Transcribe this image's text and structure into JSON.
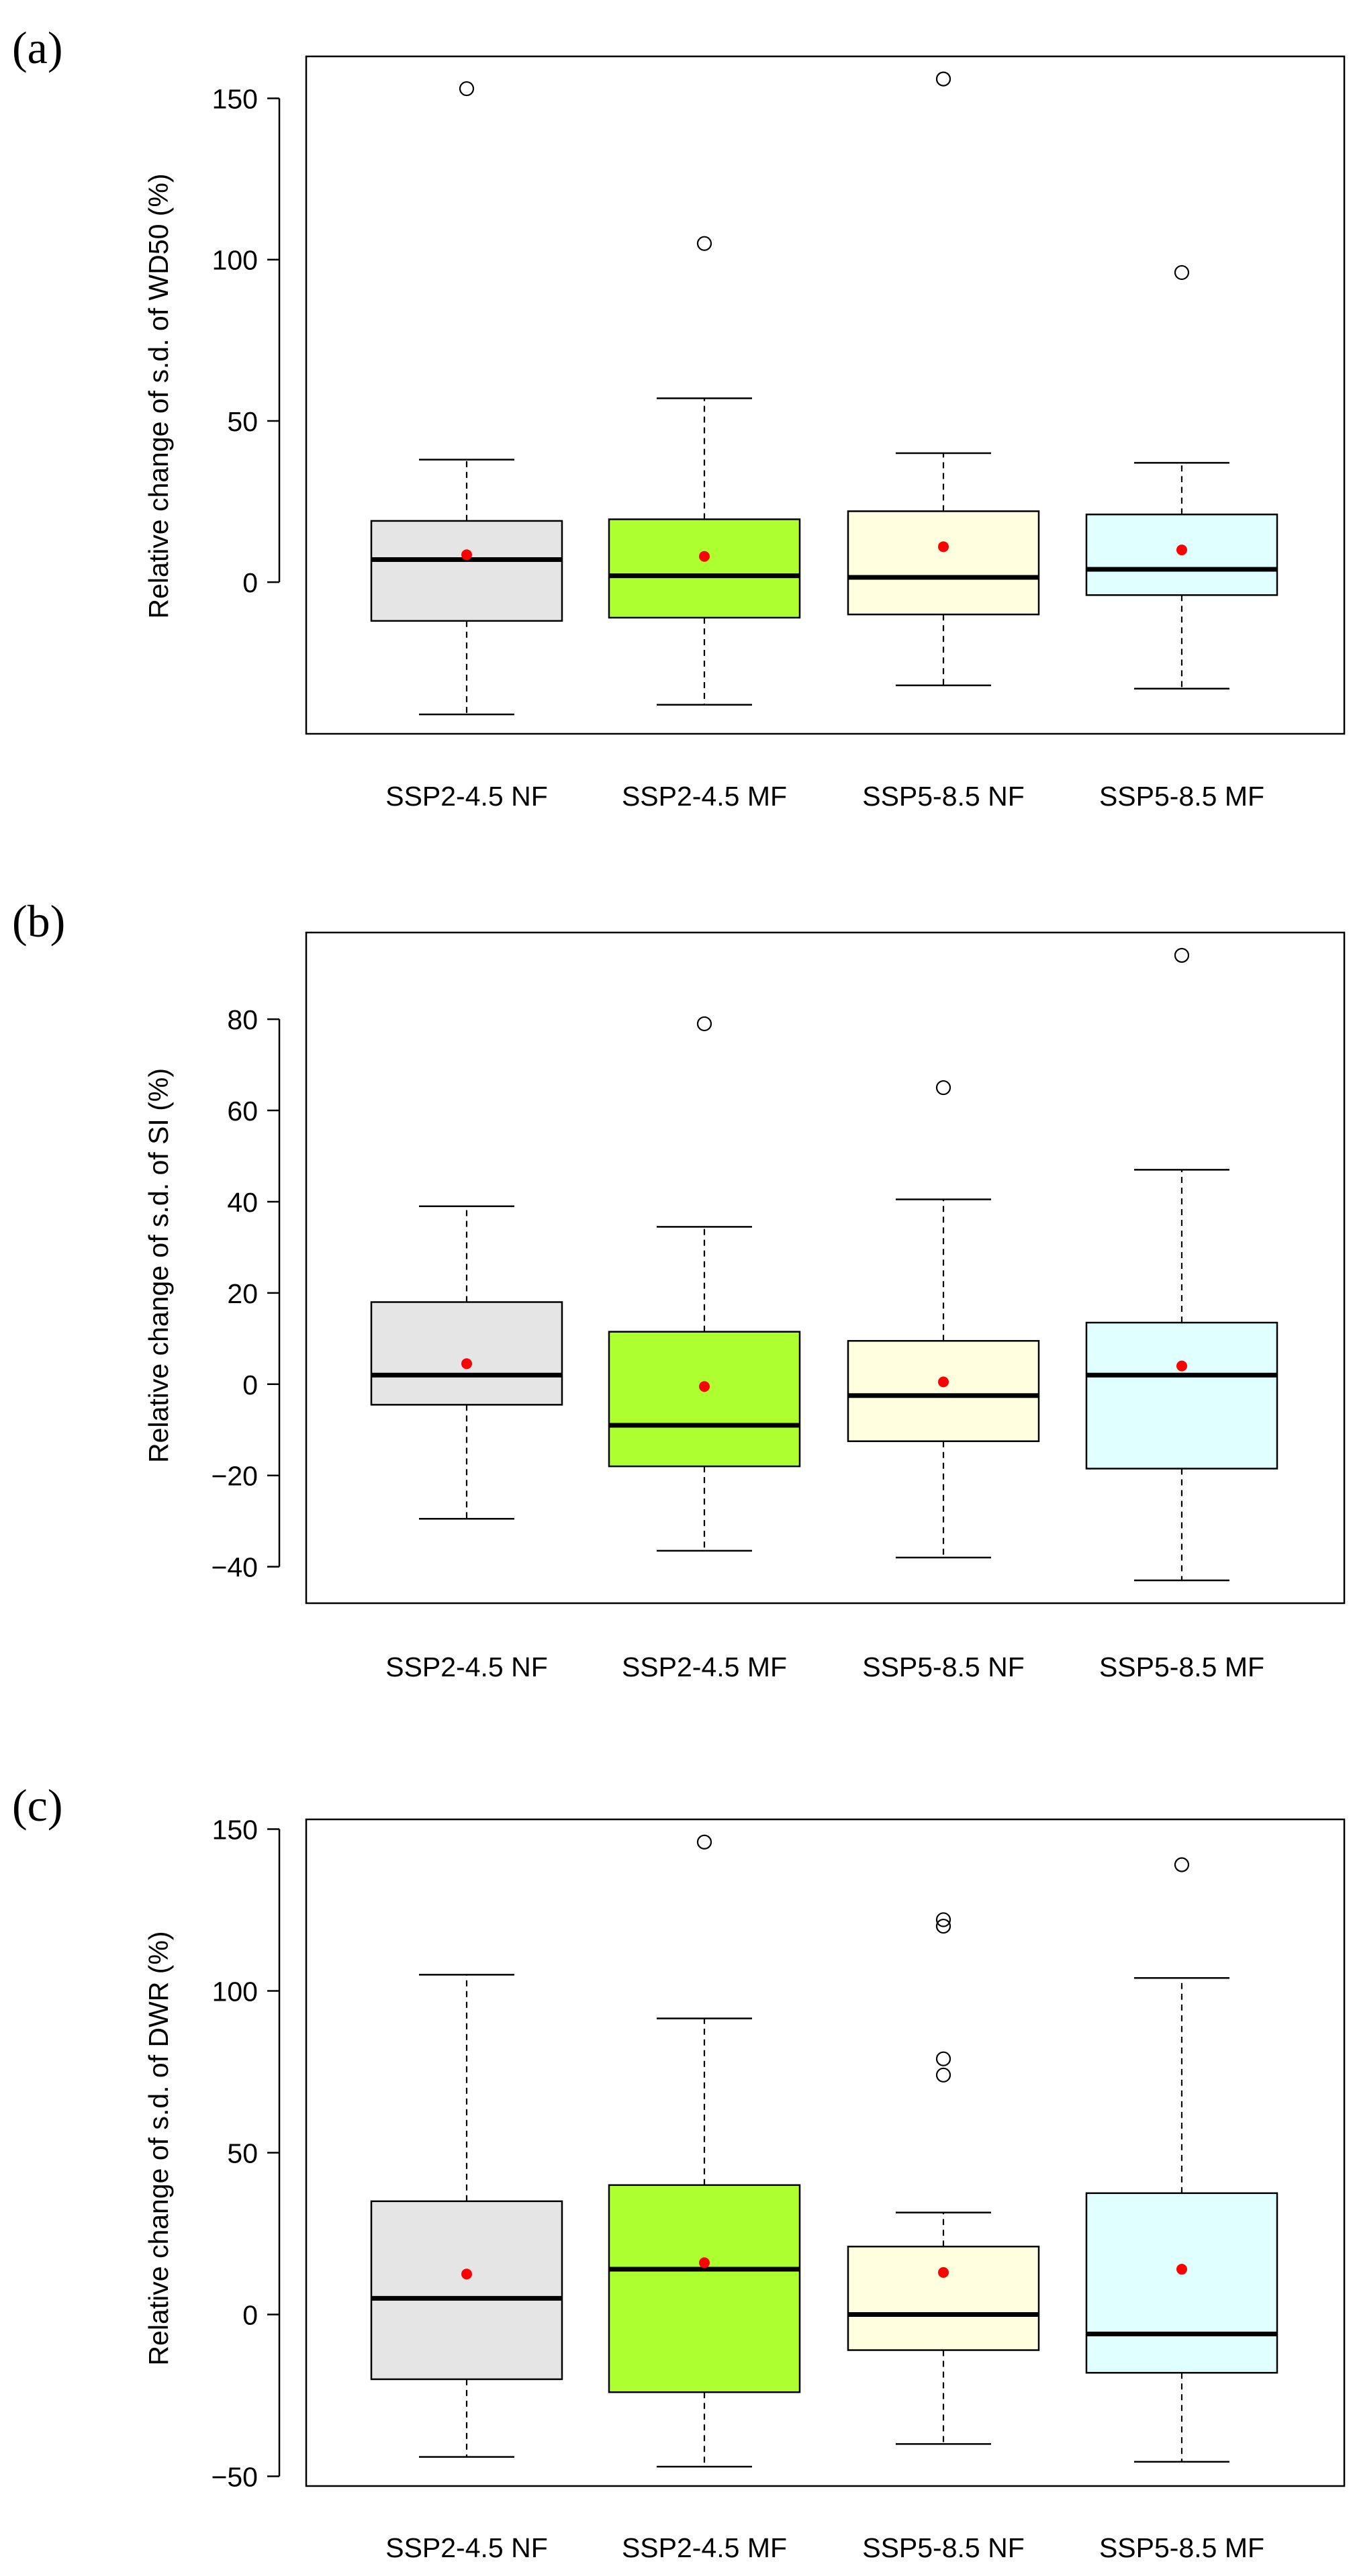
{
  "chart_data": [
    {
      "type": "box",
      "panel_label": "(a)",
      "ylabel": "Relative change of s.d. of WD50 (%)",
      "ylim": [
        -47,
        163
      ],
      "yticks": [
        0,
        50,
        100,
        150
      ],
      "ytick_labels": [
        "0",
        "50",
        "100",
        "150"
      ],
      "categories": [
        "SSP2-4.5 NF",
        "SSP2-4.5 MF",
        "SSP5-8.5 NF",
        "SSP5-8.5 MF"
      ],
      "boxes": [
        {
          "name": "SSP2-4.5 NF",
          "color": "#e5e5e5",
          "whisker_low": -41,
          "q1": -12,
          "median": 7,
          "q3": 19,
          "whisker_high": 38,
          "mean": 8.5,
          "outliers": [
            153
          ]
        },
        {
          "name": "SSP2-4.5 MF",
          "color": "#adff2f",
          "whisker_low": -38,
          "q1": -11,
          "median": 2,
          "q3": 19.5,
          "whisker_high": 57,
          "mean": 8,
          "outliers": [
            105
          ]
        },
        {
          "name": "SSP5-8.5 NF",
          "color": "#ffffe0",
          "whisker_low": -32,
          "q1": -10,
          "median": 1.5,
          "q3": 22,
          "whisker_high": 40,
          "mean": 11,
          "outliers": [
            156
          ]
        },
        {
          "name": "SSP5-8.5 MF",
          "color": "#e0ffff",
          "whisker_low": -33,
          "q1": -4,
          "median": 4,
          "q3": 21,
          "whisker_high": 37,
          "mean": 10,
          "outliers": [
            96
          ]
        }
      ]
    },
    {
      "type": "box",
      "panel_label": "(b)",
      "ylabel": "Relative change of s.d. of SI (%)",
      "ylim": [
        -48,
        99
      ],
      "yticks": [
        -40,
        -20,
        0,
        20,
        40,
        60,
        80
      ],
      "ytick_labels": [
        "−40",
        "−20",
        "0",
        "20",
        "40",
        "60",
        "80"
      ],
      "categories": [
        "SSP2-4.5 NF",
        "SSP2-4.5 MF",
        "SSP5-8.5 NF",
        "SSP5-8.5 MF"
      ],
      "boxes": [
        {
          "name": "SSP2-4.5 NF",
          "color": "#e5e5e5",
          "whisker_low": -29.5,
          "q1": -4.5,
          "median": 2,
          "q3": 18,
          "whisker_high": 39,
          "mean": 4.5,
          "outliers": []
        },
        {
          "name": "SSP2-4.5 MF",
          "color": "#adff2f",
          "whisker_low": -36.5,
          "q1": -18,
          "median": -9,
          "q3": 11.5,
          "whisker_high": 34.5,
          "mean": -0.5,
          "outliers": [
            79
          ]
        },
        {
          "name": "SSP5-8.5 NF",
          "color": "#ffffe0",
          "whisker_low": -38,
          "q1": -12.5,
          "median": -2.5,
          "q3": 9.5,
          "whisker_high": 40.5,
          "mean": 0.5,
          "outliers": [
            65
          ]
        },
        {
          "name": "SSP5-8.5 MF",
          "color": "#e0ffff",
          "whisker_low": -43,
          "q1": -18.5,
          "median": 2,
          "q3": 13.5,
          "whisker_high": 47,
          "mean": 4,
          "outliers": [
            94
          ]
        }
      ]
    },
    {
      "type": "box",
      "panel_label": "(c)",
      "ylabel": "Relative change of s.d. of DWR (%)",
      "ylim": [
        -53,
        153
      ],
      "yticks": [
        -50,
        0,
        50,
        100,
        150
      ],
      "ytick_labels": [
        "−50",
        "0",
        "50",
        "100",
        "150"
      ],
      "categories": [
        "SSP2-4.5 NF",
        "SSP2-4.5 MF",
        "SSP5-8.5 NF",
        "SSP5-8.5 MF"
      ],
      "boxes": [
        {
          "name": "SSP2-4.5 NF",
          "color": "#e5e5e5",
          "whisker_low": -44,
          "q1": -20,
          "median": 5,
          "q3": 35,
          "whisker_high": 105,
          "mean": 12.5,
          "outliers": []
        },
        {
          "name": "SSP2-4.5 MF",
          "color": "#adff2f",
          "whisker_low": -47,
          "q1": -24,
          "median": 14,
          "q3": 40,
          "whisker_high": 91.5,
          "mean": 16,
          "outliers": [
            146
          ]
        },
        {
          "name": "SSP5-8.5 NF",
          "color": "#ffffe0",
          "whisker_low": -40,
          "q1": -11,
          "median": 0,
          "q3": 21,
          "whisker_high": 31.5,
          "mean": 13,
          "outliers": [
            122,
            120,
            79,
            74
          ]
        },
        {
          "name": "SSP5-8.5 MF",
          "color": "#e0ffff",
          "whisker_low": -45.5,
          "q1": -18,
          "median": -6,
          "q3": 37.5,
          "whisker_high": 104,
          "mean": 14,
          "outliers": [
            139
          ]
        }
      ]
    }
  ],
  "colors": {
    "mean_marker": "#ff0000",
    "axis": "#000000"
  }
}
